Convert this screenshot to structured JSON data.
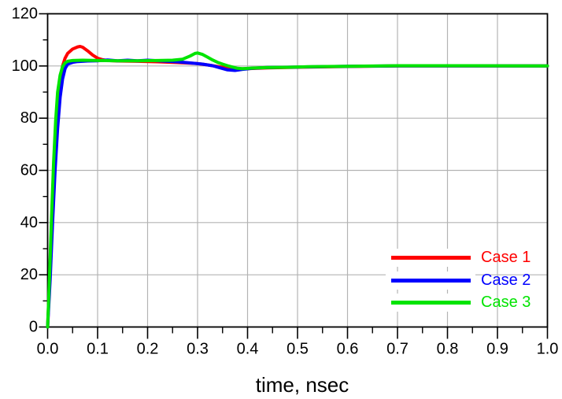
{
  "chart_data": {
    "type": "line",
    "title": "",
    "xlabel": "time, nsec",
    "ylabel": "",
    "xlim": [
      0,
      1
    ],
    "ylim": [
      0,
      120
    ],
    "x_major_ticks": [
      0,
      0.1,
      0.2,
      0.3,
      0.4,
      0.5,
      0.6,
      0.7,
      0.8,
      0.9,
      1.0
    ],
    "x_tick_labels": [
      "0.0",
      "0.1",
      "0.2",
      "0.3",
      "0.4",
      "0.5",
      "0.6",
      "0.7",
      "0.8",
      "0.9",
      "1.0"
    ],
    "x_minor_ticks": [
      0.05,
      0.15,
      0.25,
      0.35,
      0.45,
      0.55,
      0.65,
      0.75,
      0.85,
      0.95
    ],
    "y_major_ticks": [
      0,
      20,
      40,
      60,
      80,
      100,
      120
    ],
    "y_tick_labels": [
      "0",
      "20",
      "40",
      "60",
      "80",
      "100",
      "120"
    ],
    "y_minor_ticks": [
      10,
      30,
      50,
      70,
      90,
      110
    ],
    "grid": {
      "show_major": true,
      "show_minor": false,
      "color": "#b3b3b3"
    },
    "frame_color": "#000000",
    "tick_color": "#000000",
    "label_color": "#000000",
    "background": "#ffffff",
    "legend": {
      "position": "inside-bottom-right"
    },
    "series": [
      {
        "name": "Case 1",
        "color": "#ff0000",
        "points": [
          [
            0,
            0
          ],
          [
            0.004,
            18
          ],
          [
            0.008,
            40
          ],
          [
            0.012,
            60
          ],
          [
            0.016,
            76
          ],
          [
            0.02,
            87
          ],
          [
            0.025,
            95
          ],
          [
            0.03,
            100
          ],
          [
            0.035,
            103
          ],
          [
            0.04,
            104.8
          ],
          [
            0.05,
            106.5
          ],
          [
            0.06,
            107.3
          ],
          [
            0.065,
            107.5
          ],
          [
            0.07,
            107.2
          ],
          [
            0.08,
            105.8
          ],
          [
            0.09,
            104.2
          ],
          [
            0.1,
            103
          ],
          [
            0.11,
            102.4
          ],
          [
            0.12,
            102.1
          ],
          [
            0.14,
            101.9
          ],
          [
            0.18,
            101.8
          ],
          [
            0.22,
            101.6
          ],
          [
            0.26,
            101.3
          ],
          [
            0.3,
            100.9
          ],
          [
            0.32,
            100.4
          ],
          [
            0.34,
            99.8
          ],
          [
            0.36,
            99.2
          ],
          [
            0.38,
            98.9
          ],
          [
            0.4,
            99
          ],
          [
            0.44,
            99.3
          ],
          [
            0.48,
            99.4
          ],
          [
            0.52,
            99.6
          ],
          [
            0.6,
            99.8
          ],
          [
            0.7,
            100
          ],
          [
            0.85,
            100
          ],
          [
            1,
            100
          ]
        ]
      },
      {
        "name": "Case 2",
        "color": "#0000ff",
        "points": [
          [
            0,
            0
          ],
          [
            0.005,
            18
          ],
          [
            0.01,
            40
          ],
          [
            0.015,
            60
          ],
          [
            0.02,
            76
          ],
          [
            0.025,
            88
          ],
          [
            0.03,
            95
          ],
          [
            0.035,
            99
          ],
          [
            0.04,
            100.7
          ],
          [
            0.05,
            101.4
          ],
          [
            0.06,
            101.7
          ],
          [
            0.08,
            101.9
          ],
          [
            0.1,
            102
          ],
          [
            0.12,
            102.3
          ],
          [
            0.14,
            102
          ],
          [
            0.16,
            102.2
          ],
          [
            0.18,
            102
          ],
          [
            0.2,
            102.2
          ],
          [
            0.23,
            101.9
          ],
          [
            0.26,
            101.6
          ],
          [
            0.29,
            101.1
          ],
          [
            0.31,
            100.7
          ],
          [
            0.33,
            100.1
          ],
          [
            0.345,
            99.3
          ],
          [
            0.36,
            98.5
          ],
          [
            0.375,
            98.3
          ],
          [
            0.39,
            98.7
          ],
          [
            0.41,
            99.1
          ],
          [
            0.44,
            99.4
          ],
          [
            0.5,
            99.6
          ],
          [
            0.6,
            99.9
          ],
          [
            0.7,
            100
          ],
          [
            0.85,
            100
          ],
          [
            1,
            100
          ]
        ]
      },
      {
        "name": "Case 3",
        "color": "#00e400",
        "points": [
          [
            0,
            0
          ],
          [
            0.004,
            20
          ],
          [
            0.008,
            43
          ],
          [
            0.012,
            63
          ],
          [
            0.016,
            79
          ],
          [
            0.02,
            90
          ],
          [
            0.025,
            96.5
          ],
          [
            0.03,
            99.8
          ],
          [
            0.035,
            101.2
          ],
          [
            0.04,
            101.8
          ],
          [
            0.05,
            102.1
          ],
          [
            0.07,
            102.2
          ],
          [
            0.1,
            102.1
          ],
          [
            0.14,
            102
          ],
          [
            0.18,
            102
          ],
          [
            0.22,
            102.1
          ],
          [
            0.25,
            102.2
          ],
          [
            0.27,
            102.6
          ],
          [
            0.285,
            103.8
          ],
          [
            0.295,
            104.8
          ],
          [
            0.3,
            105
          ],
          [
            0.31,
            104.4
          ],
          [
            0.32,
            103.4
          ],
          [
            0.33,
            102.3
          ],
          [
            0.34,
            101.4
          ],
          [
            0.35,
            100.7
          ],
          [
            0.36,
            100.1
          ],
          [
            0.37,
            99.6
          ],
          [
            0.38,
            99.1
          ],
          [
            0.39,
            99
          ],
          [
            0.41,
            99.2
          ],
          [
            0.44,
            99.4
          ],
          [
            0.48,
            99.5
          ],
          [
            0.52,
            99.7
          ],
          [
            0.6,
            99.9
          ],
          [
            0.7,
            100.1
          ],
          [
            0.85,
            100.1
          ],
          [
            1,
            100
          ]
        ]
      }
    ]
  }
}
